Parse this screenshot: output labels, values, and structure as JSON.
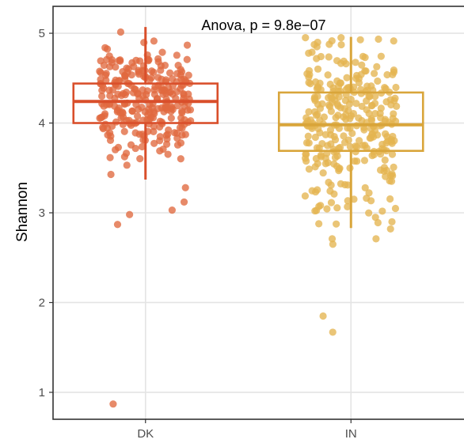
{
  "chart_data": {
    "type": "box",
    "title": "",
    "annotation": "Anova, p = 9.8e−07",
    "xlabel": "",
    "ylabel": "Shannon",
    "ylim": [
      0.7,
      5.3
    ],
    "yticks": [
      1,
      2,
      3,
      4,
      5
    ],
    "grid": true,
    "legend": "none",
    "categories": [
      "DK",
      "IN"
    ],
    "groups": [
      {
        "label": "DK",
        "color": "#d94f2b",
        "point_color": "#e0693f",
        "min": 3.37,
        "q1": 4.0,
        "median": 4.24,
        "q3": 4.44,
        "max": 5.07,
        "outliers": [
          3.28,
          3.03,
          3.12,
          2.98,
          2.87,
          0.87
        ],
        "n_points": 280
      },
      {
        "label": "IN",
        "color": "#d9a53a",
        "point_color": "#e4b551",
        "min": 2.83,
        "q1": 3.69,
        "median": 3.98,
        "q3": 4.34,
        "max": 4.96,
        "outliers": [
          2.71,
          2.65,
          2.71,
          2.82,
          2.9,
          1.85,
          1.67
        ],
        "n_points": 310
      }
    ]
  }
}
